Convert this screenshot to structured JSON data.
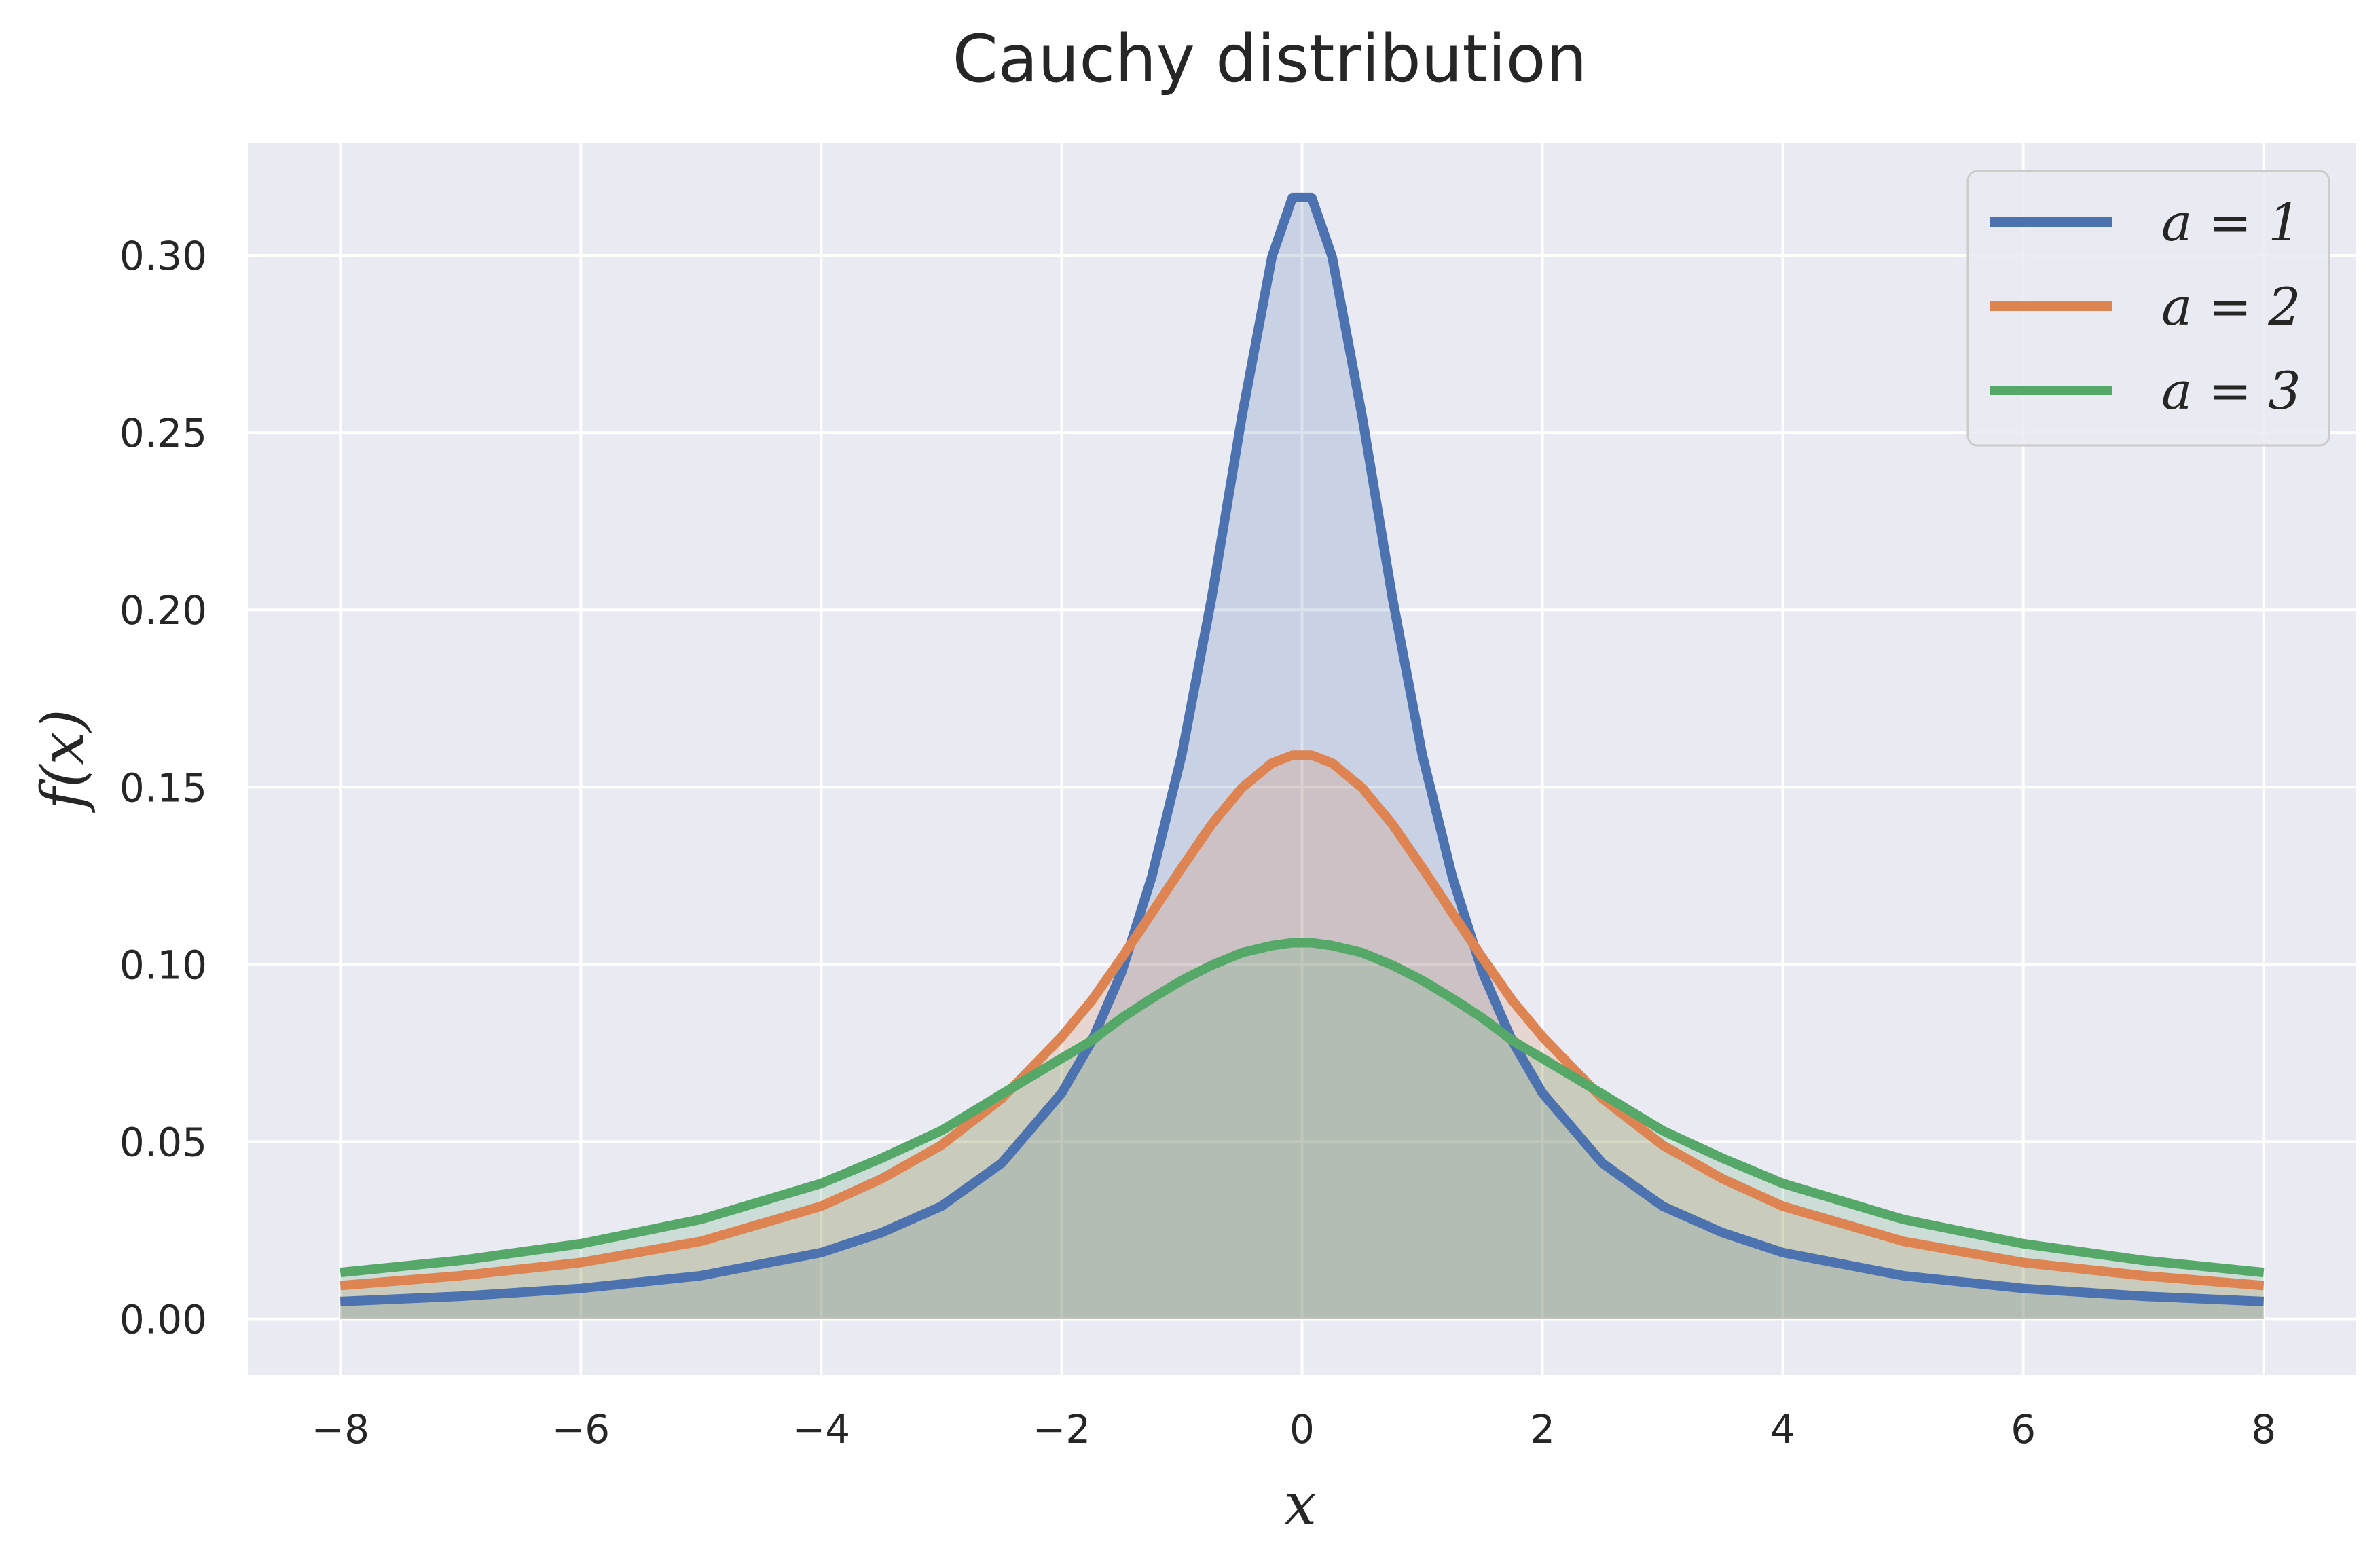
{
  "chart_data": {
    "type": "line",
    "title": "Cauchy distribution",
    "xlabel": "x",
    "ylabel": "f(x)",
    "xlim": [
      -8.77,
      8.77
    ],
    "ylim": [
      -0.0158,
      0.3318
    ],
    "x_ticks": [
      -8,
      -6,
      -4,
      -2,
      0,
      2,
      4,
      6,
      8
    ],
    "x_tick_labels": [
      "−8",
      "−6",
      "−4",
      "−2",
      "0",
      "2",
      "4",
      "6",
      "8"
    ],
    "y_ticks": [
      0.0,
      0.05,
      0.1,
      0.15,
      0.2,
      0.25,
      0.3
    ],
    "y_tick_labels": [
      "0.00",
      "0.05",
      "0.10",
      "0.15",
      "0.20",
      "0.25",
      "0.30"
    ],
    "grid": true,
    "legend_position": "top-right",
    "background_color": "#e9eaf2",
    "x": [
      -8,
      -7,
      -6,
      -5,
      -4,
      -3.5,
      -3,
      -2.5,
      -2,
      -1.75,
      -1.5,
      -1.25,
      -1,
      -0.75,
      -0.5,
      -0.25,
      -0.08,
      0.08,
      0.25,
      0.5,
      0.75,
      1,
      1.25,
      1.5,
      1.75,
      2,
      2.5,
      3,
      3.5,
      4,
      5,
      6,
      7,
      8
    ],
    "series": [
      {
        "name": "a = 1",
        "color": "#4c72b0",
        "fill_color": "#4c72b0",
        "values": [
          0.0049,
          0.0064,
          0.0086,
          0.0122,
          0.0187,
          0.0243,
          0.0318,
          0.0439,
          0.0637,
          0.0783,
          0.0979,
          0.1247,
          0.1592,
          0.2037,
          0.2546,
          0.2996,
          0.3163,
          0.3163,
          0.2996,
          0.2546,
          0.2037,
          0.1592,
          0.1247,
          0.0979,
          0.0783,
          0.0637,
          0.0439,
          0.0318,
          0.0243,
          0.0187,
          0.0122,
          0.0086,
          0.0064,
          0.0049
        ]
      },
      {
        "name": "a = 2",
        "color": "#dd8452",
        "fill_color": "#dd8452",
        "values": [
          0.0094,
          0.0122,
          0.0159,
          0.0219,
          0.0318,
          0.0395,
          0.049,
          0.0621,
          0.0796,
          0.0898,
          0.1019,
          0.1145,
          0.1273,
          0.1396,
          0.1498,
          0.1568,
          0.159,
          0.159,
          0.1568,
          0.1498,
          0.1396,
          0.1273,
          0.1145,
          0.1019,
          0.0898,
          0.0796,
          0.0621,
          0.049,
          0.0395,
          0.0318,
          0.0219,
          0.0159,
          0.0122,
          0.0094
        ]
      },
      {
        "name": "a = 3",
        "color": "#55a868",
        "fill_color": "#55a868",
        "values": [
          0.0131,
          0.0165,
          0.0212,
          0.0281,
          0.0382,
          0.0453,
          0.0531,
          0.0634,
          0.0735,
          0.0785,
          0.0849,
          0.0904,
          0.0955,
          0.0998,
          0.1033,
          0.1053,
          0.1061,
          0.1061,
          0.1053,
          0.1033,
          0.0998,
          0.0955,
          0.0904,
          0.0849,
          0.0785,
          0.0735,
          0.0634,
          0.0531,
          0.0453,
          0.0382,
          0.0281,
          0.0212,
          0.0165,
          0.0131
        ]
      }
    ]
  }
}
